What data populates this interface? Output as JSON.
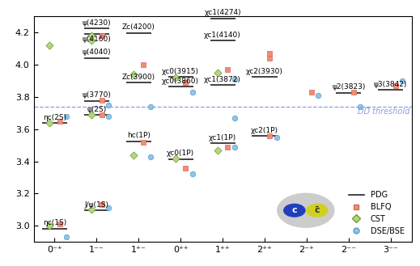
{
  "chart_data": {
    "type": "level_scatter",
    "categories": [
      "0⁻⁺",
      "1⁻⁻",
      "1⁺⁻",
      "0⁺⁺",
      "1⁺⁺",
      "2⁺⁺",
      "2⁻⁺",
      "2⁻⁻",
      "3⁻⁻"
    ],
    "ylim": [
      2.9,
      4.3
    ],
    "yticks": [
      3.0,
      3.2,
      3.4,
      3.6,
      3.8,
      4.0,
      4.2
    ],
    "legend": "lower right",
    "series": [
      {
        "name": "PDG",
        "type": "level",
        "color": "#222222",
        "line_style": "solid",
        "points": [
          {
            "category": "0⁻⁺",
            "value": 2.984,
            "label": "ηc(1S)"
          },
          {
            "category": "0⁻⁺",
            "value": 3.638,
            "label": "ηc(2S)"
          },
          {
            "category": "1⁻⁻",
            "value": 3.097,
            "label": "J/ψ(1S)"
          },
          {
            "category": "1⁻⁻",
            "value": 3.686,
            "label": "ψ(2S)"
          },
          {
            "category": "1⁻⁻",
            "value": 3.774,
            "label": "ψ(3770)"
          },
          {
            "category": "1⁻⁻",
            "value": 4.039,
            "label": "ψ(4040)"
          },
          {
            "category": "1⁻⁻",
            "value": 4.191,
            "label": "ψ(4160)"
          },
          {
            "category": "1⁻⁻",
            "value": 4.222,
            "label": "ψ(4230)"
          },
          {
            "category": "1⁺⁻",
            "value": 3.525,
            "label": "hc(1P)"
          },
          {
            "category": "1⁺⁻",
            "value": 3.887,
            "label": "Zc(3900)"
          },
          {
            "category": "1⁺⁻",
            "value": 4.196,
            "label": "Zc(4200)"
          },
          {
            "category": "0⁺⁺",
            "value": 3.415,
            "label": "χc0(1P)"
          },
          {
            "category": "0⁺⁺",
            "value": 3.862,
            "label": "χc0(3860)"
          },
          {
            "category": "0⁺⁺",
            "value": 3.922,
            "label": "χc0(3915)"
          },
          {
            "category": "1⁺⁺",
            "value": 3.511,
            "label": "χc1(1P)"
          },
          {
            "category": "1⁺⁺",
            "value": 3.872,
            "label": "χc1(3872)"
          },
          {
            "category": "1⁺⁺",
            "value": 4.147,
            "label": "χc1(4140)"
          },
          {
            "category": "1⁺⁺",
            "value": 4.286,
            "label": "χc1(4274)"
          },
          {
            "category": "2⁺⁺",
            "value": 3.556,
            "label": "χc2(1P)"
          },
          {
            "category": "2⁺⁺",
            "value": 3.923,
            "label": "χc2(3930)"
          },
          {
            "category": "2⁻⁻",
            "value": 3.824,
            "label": "ψ2(3823)"
          },
          {
            "category": "3⁻⁻",
            "value": 3.843,
            "label": "ψ3(3842)"
          }
        ]
      },
      {
        "name": "BLFQ",
        "type": "scatter",
        "color": "#f08c78",
        "marker": "square",
        "points": [
          {
            "category": "0⁻⁺",
            "value": 3.01
          },
          {
            "category": "0⁻⁺",
            "value": 3.65
          },
          {
            "category": "1⁻⁻",
            "value": 3.13
          },
          {
            "category": "1⁻⁻",
            "value": 3.69
          },
          {
            "category": "1⁻⁻",
            "value": 3.78
          },
          {
            "category": "1⁻⁻",
            "value": 4.18
          },
          {
            "category": "1⁺⁻",
            "value": 3.52
          },
          {
            "category": "1⁺⁻",
            "value": 4.0
          },
          {
            "category": "0⁺⁺",
            "value": 3.36
          },
          {
            "category": "0⁺⁺",
            "value": 3.89
          },
          {
            "category": "1⁺⁺",
            "value": 3.49
          },
          {
            "category": "1⁺⁺",
            "value": 3.97
          },
          {
            "category": "2⁺⁺",
            "value": 3.56
          },
          {
            "category": "2⁺⁺",
            "value": 4.04
          },
          {
            "category": "2⁺⁺",
            "value": 4.07
          },
          {
            "category": "2⁻⁺",
            "value": 3.83
          },
          {
            "category": "2⁻⁻",
            "value": 3.83
          },
          {
            "category": "3⁻⁻",
            "value": 3.87
          }
        ]
      },
      {
        "name": "CST",
        "type": "scatter",
        "color": "#b5d77a",
        "marker": "diamond",
        "points": [
          {
            "category": "0⁻⁺",
            "value": 3.0
          },
          {
            "category": "0⁻⁺",
            "value": 3.64
          },
          {
            "category": "0⁻⁺",
            "value": 4.12
          },
          {
            "category": "1⁻⁻",
            "value": 3.1
          },
          {
            "category": "1⁻⁻",
            "value": 3.69
          },
          {
            "category": "1⁻⁻",
            "value": 4.15
          },
          {
            "category": "1⁻⁻",
            "value": 4.18
          },
          {
            "category": "1⁺⁻",
            "value": 3.44
          },
          {
            "category": "1⁺⁻",
            "value": 3.94
          },
          {
            "category": "0⁺⁺",
            "value": 3.42
          },
          {
            "category": "0⁺⁺",
            "value": 3.92
          },
          {
            "category": "1⁺⁺",
            "value": 3.47
          },
          {
            "category": "1⁺⁺",
            "value": 3.95
          }
        ]
      },
      {
        "name": "DSE/BSE",
        "type": "scatter",
        "color": "#8ec5e8",
        "marker": "circle",
        "points": [
          {
            "category": "0⁻⁺",
            "value": 2.93
          },
          {
            "category": "0⁻⁺",
            "value": 3.68
          },
          {
            "category": "1⁻⁻",
            "value": 3.11
          },
          {
            "category": "1⁻⁻",
            "value": 3.68
          },
          {
            "category": "1⁻⁻",
            "value": 3.75
          },
          {
            "category": "1⁺⁻",
            "value": 3.43
          },
          {
            "category": "1⁺⁻",
            "value": 3.74
          },
          {
            "category": "0⁺⁺",
            "value": 3.32
          },
          {
            "category": "0⁺⁺",
            "value": 3.83
          },
          {
            "category": "1⁺⁺",
            "value": 3.49
          },
          {
            "category": "1⁺⁺",
            "value": 3.67
          },
          {
            "category": "1⁺⁺",
            "value": 3.91
          },
          {
            "category": "2⁺⁺",
            "value": 3.55
          },
          {
            "category": "2⁻⁺",
            "value": 3.81
          },
          {
            "category": "2⁻⁻",
            "value": 3.74
          },
          {
            "category": "3⁻⁻",
            "value": 3.9
          }
        ]
      }
    ],
    "threshold": {
      "value": 3.739,
      "label": "DD̄ threshold",
      "color": "#8c9ee0",
      "line_style": "dashed"
    },
    "icon_labels": [
      "c",
      "c̄"
    ]
  }
}
